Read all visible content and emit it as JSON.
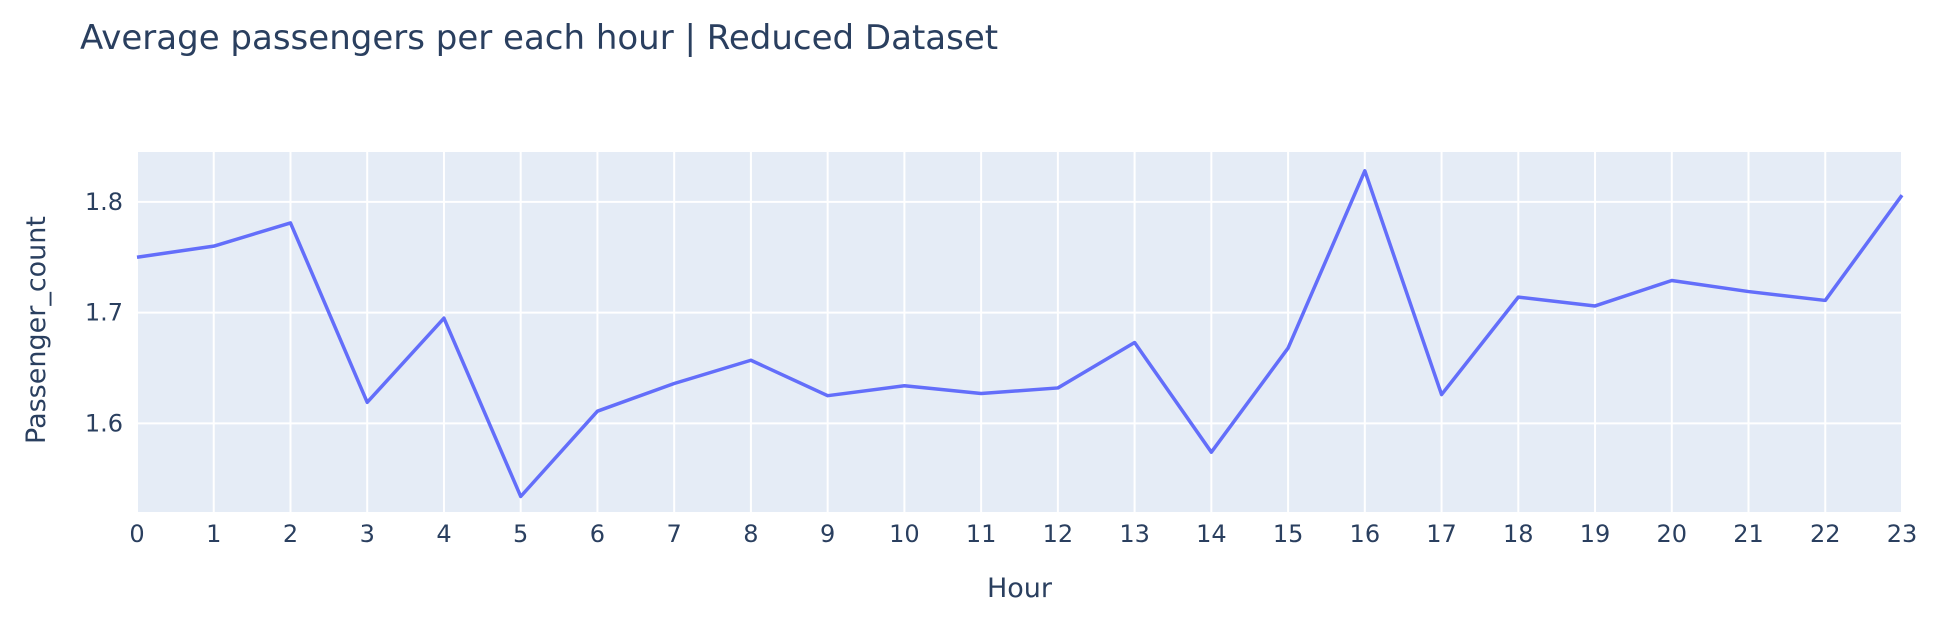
{
  "chart_data": {
    "type": "line",
    "title": "Average passengers per each hour | Reduced Dataset",
    "xlabel": "Hour",
    "ylabel": "Passenger_count",
    "x": [
      0,
      1,
      2,
      3,
      4,
      5,
      6,
      7,
      8,
      9,
      10,
      11,
      12,
      13,
      14,
      15,
      16,
      17,
      18,
      19,
      20,
      21,
      22,
      23
    ],
    "series": [
      {
        "values": [
          1.75,
          1.76,
          1.781,
          1.619,
          1.695,
          1.534,
          1.611,
          1.636,
          1.657,
          1.625,
          1.634,
          1.627,
          1.632,
          1.673,
          1.574,
          1.668,
          1.828,
          1.626,
          1.714,
          1.706,
          1.729,
          1.719,
          1.711,
          1.806
        ],
        "color": "#636efa"
      }
    ],
    "xlim": [
      0,
      23
    ],
    "ylim": [
      1.52,
      1.845
    ],
    "yticks": [
      1.6,
      1.7,
      1.8
    ],
    "ytick_labels": [
      "1.6",
      "1.7",
      "1.8"
    ],
    "xtick_labels": [
      "0",
      "1",
      "2",
      "3",
      "4",
      "5",
      "6",
      "7",
      "8",
      "9",
      "10",
      "11",
      "12",
      "13",
      "14",
      "15",
      "16",
      "17",
      "18",
      "19",
      "20",
      "21",
      "22",
      "23"
    ],
    "grid": true,
    "plot_bgcolor": "#e5ecf6",
    "legend": "none"
  }
}
